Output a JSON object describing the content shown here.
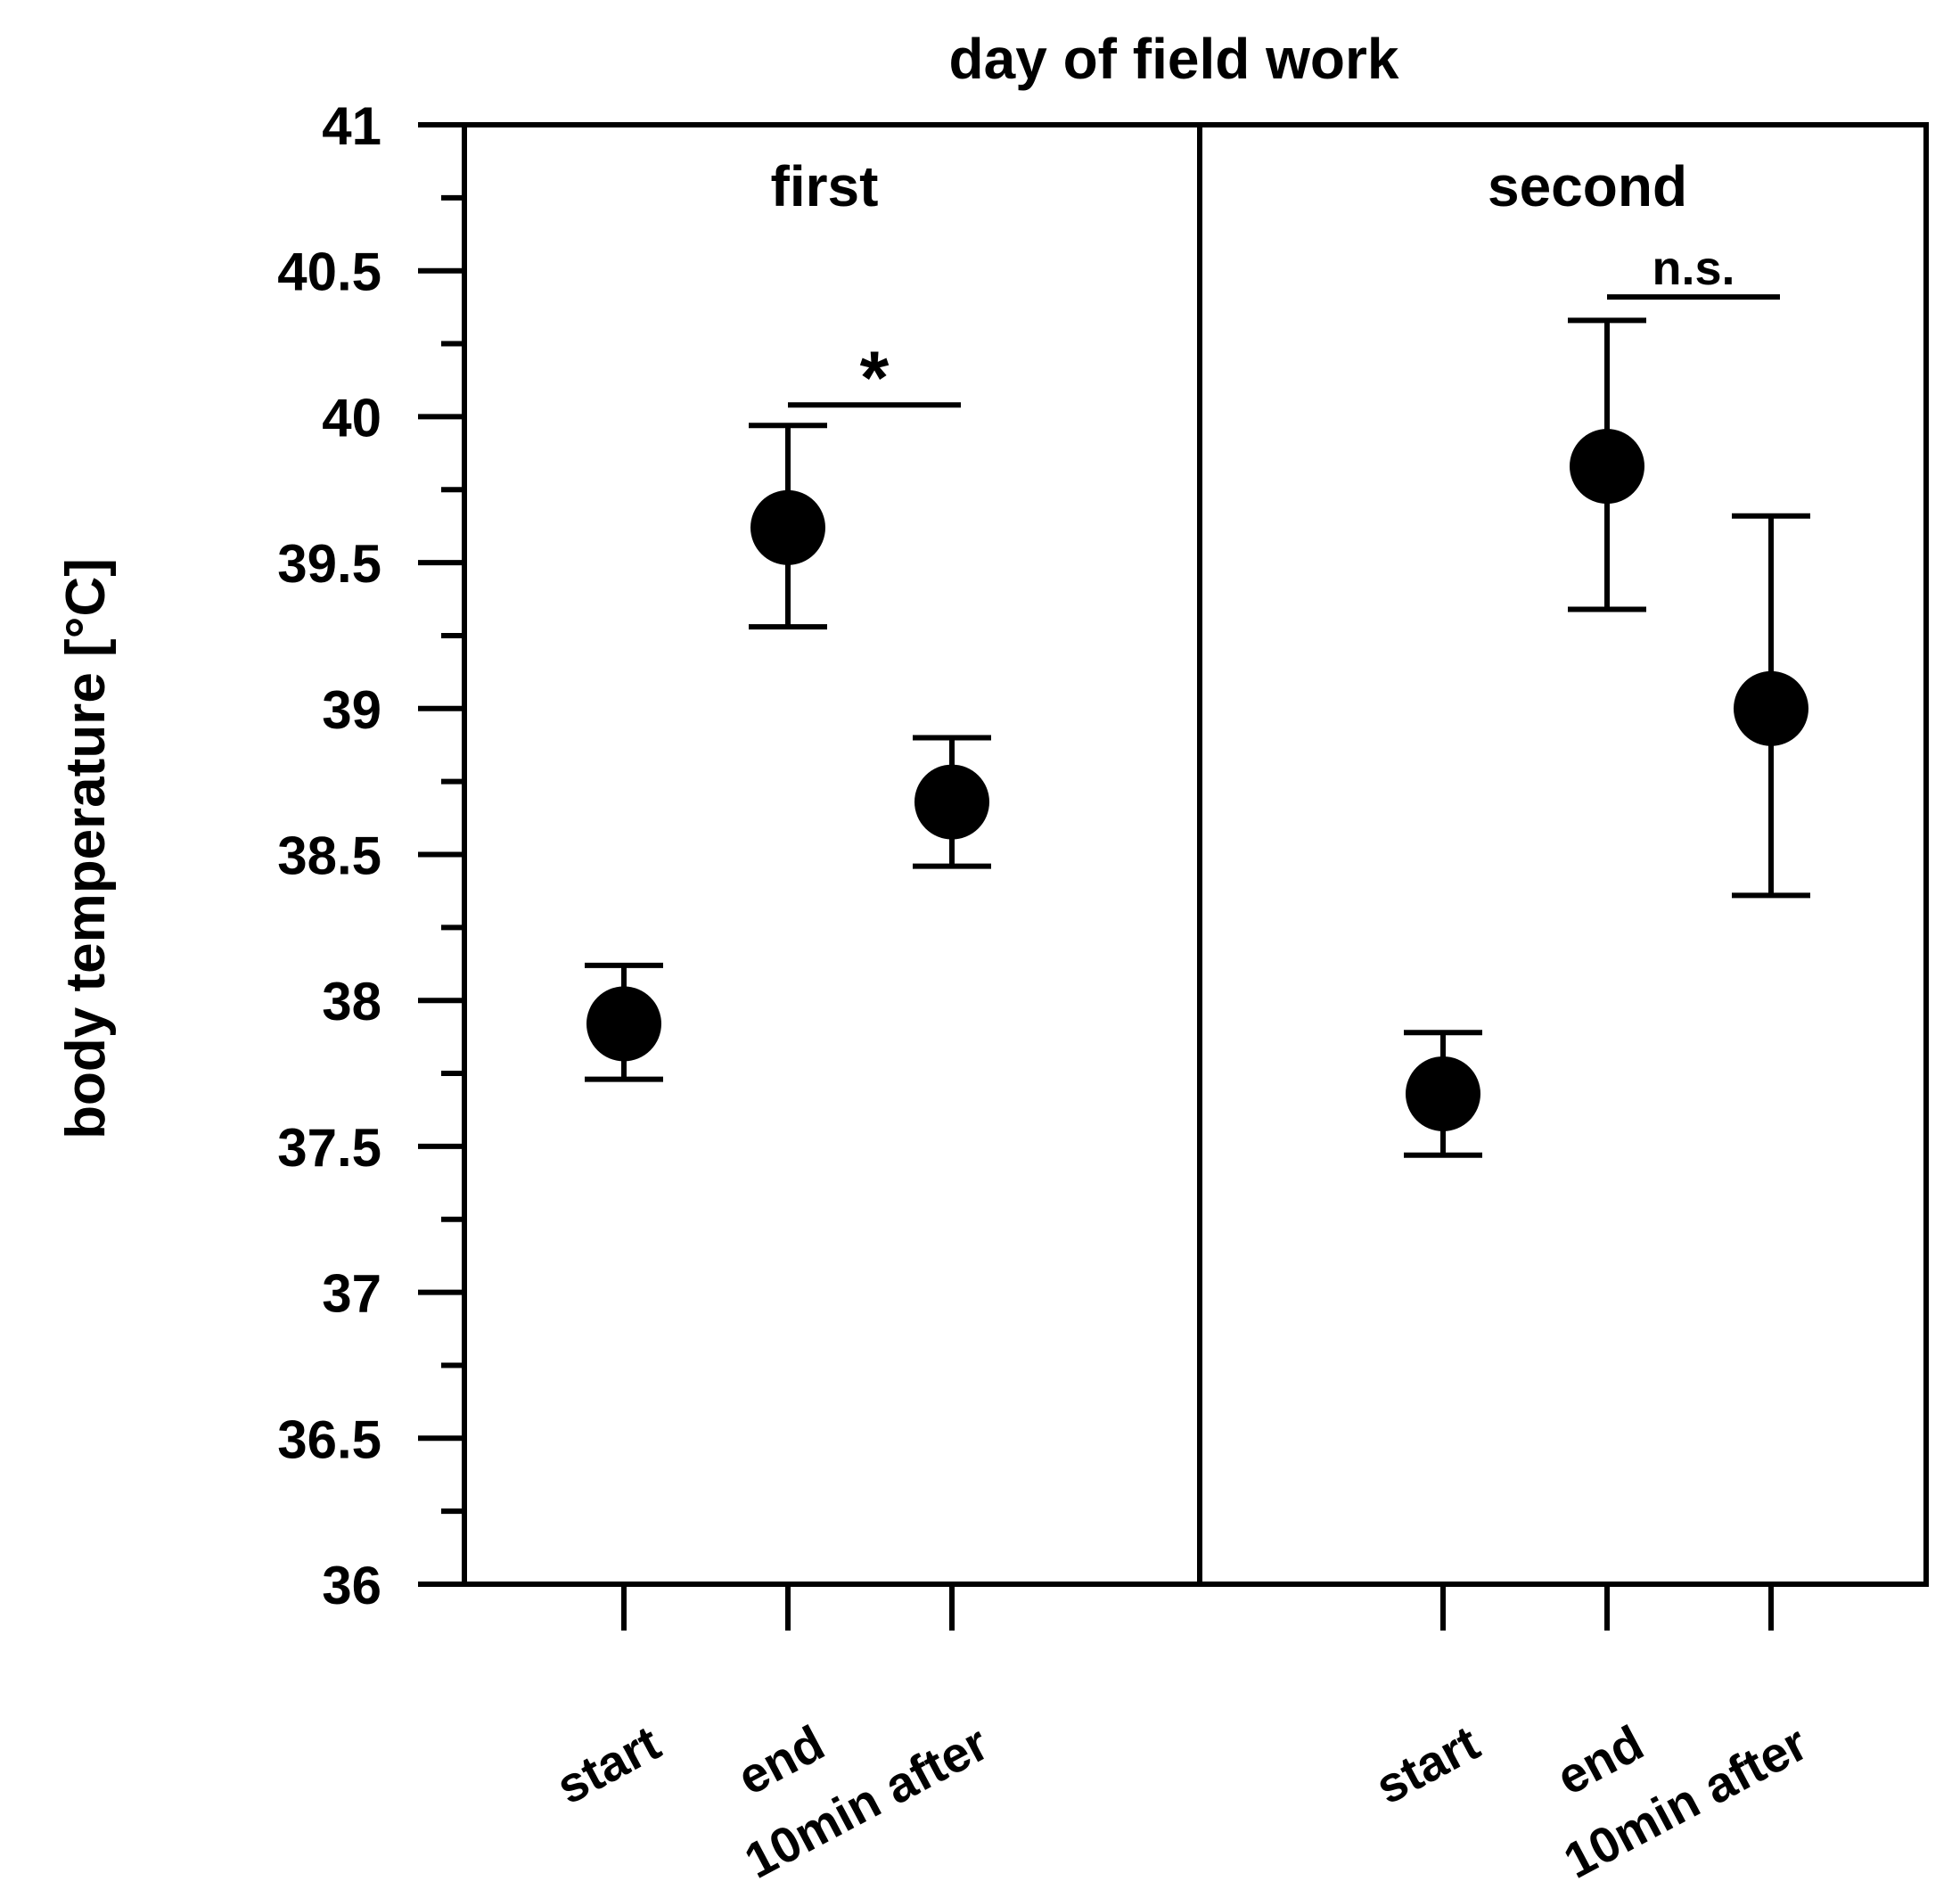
{
  "chart_data": {
    "type": "scatter",
    "title": "day of field work",
    "ylabel": "body temperature [°C]",
    "xlabel": "",
    "ylim": [
      36,
      41
    ],
    "yticks": [
      "36",
      "36.5",
      "37",
      "37.5",
      "38",
      "38.5",
      "39",
      "39.5",
      "40",
      "40.5",
      "41"
    ],
    "panels": [
      {
        "label": "first",
        "categories": [
          "start",
          "end",
          "10min after"
        ],
        "values": [
          37.92,
          39.62,
          38.68
        ],
        "err_high": [
          38.12,
          39.97,
          38.9
        ],
        "err_low": [
          37.73,
          39.28,
          38.46
        ],
        "significance": {
          "from": "end",
          "to": "10min after",
          "label": "*",
          "y": 40.04
        }
      },
      {
        "label": "second",
        "categories": [
          "start",
          "end",
          "10min after"
        ],
        "values": [
          37.68,
          39.83,
          39.0
        ],
        "err_high": [
          37.89,
          40.33,
          39.66
        ],
        "err_low": [
          37.47,
          39.34,
          38.36
        ],
        "significance": {
          "from": "end",
          "to": "10min after",
          "label": "n.s.",
          "y": 40.41
        }
      }
    ],
    "legend": "none",
    "grid": false
  }
}
